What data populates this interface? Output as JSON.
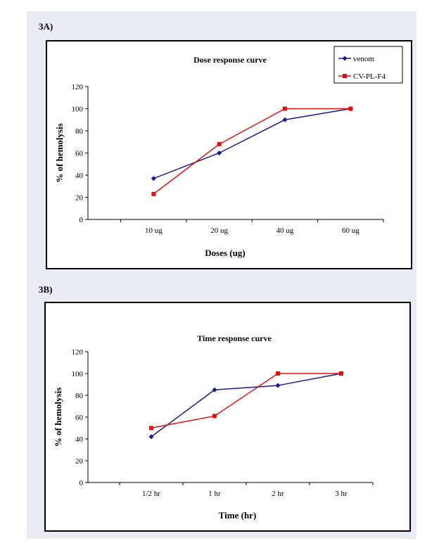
{
  "figure_labels": [
    "3A)",
    "3B)"
  ],
  "colors": {
    "venom": "#1a1a8c",
    "cv_pl_f4": "#e01010"
  },
  "chart_data": [
    {
      "type": "line",
      "title": "Dose response curve",
      "xlabel": "Doses  (ug)",
      "ylabel": "% of hemolysis",
      "categories": [
        "10 ug",
        "20 ug",
        "40 ug",
        "60 ug"
      ],
      "ylim": [
        0,
        120
      ],
      "yticks": [
        0,
        20,
        40,
        60,
        80,
        100,
        120
      ],
      "legend": "top-right",
      "grid": false,
      "series": [
        {
          "name": "venom",
          "values": [
            37,
            60,
            90,
            100
          ],
          "color": "#1a1a8c",
          "marker": "diamond"
        },
        {
          "name": "CV-PL-F4",
          "values": [
            23,
            68,
            100,
            100
          ],
          "color": "#e01010",
          "marker": "square"
        }
      ]
    },
    {
      "type": "line",
      "title": "Time response curve",
      "xlabel": "Time (hr)",
      "ylabel": "% of hemolysis",
      "categories": [
        "1/2 hr",
        "1 hr",
        "2 hr",
        "3 hr"
      ],
      "ylim": [
        0,
        120
      ],
      "yticks": [
        0,
        20,
        40,
        60,
        80,
        100,
        120
      ],
      "legend": "none",
      "grid": false,
      "series": [
        {
          "name": "venom",
          "values": [
            42,
            85,
            89,
            100
          ],
          "color": "#1a1a8c",
          "marker": "diamond"
        },
        {
          "name": "CV-PL-F4",
          "values": [
            50,
            61,
            100,
            100
          ],
          "color": "#e01010",
          "marker": "square"
        }
      ]
    }
  ]
}
